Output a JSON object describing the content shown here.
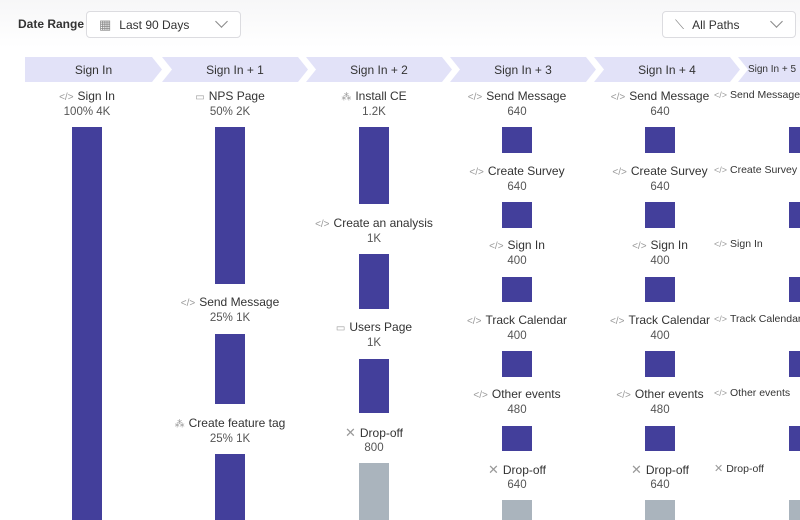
{
  "filters": {
    "date_range_label": "Date Range",
    "date_range_value": "Last 90 Days",
    "paths_value": "All Paths"
  },
  "colors": {
    "bar": "#433f9b",
    "dropoff": "#aab4bd",
    "step_header": "#e2e2f8"
  },
  "steps": [
    "Sign In",
    "Sign In + 1",
    "Sign In + 2",
    "Sign In + 3",
    "Sign In + 4",
    "Sign In + 5"
  ],
  "columns": [
    [
      {
        "icon": "code-icon",
        "label": "Sign In",
        "value": "100% 4K"
      }
    ],
    [
      {
        "icon": "page-icon",
        "label": "NPS Page",
        "value": "50% 2K"
      },
      {
        "icon": "code-icon",
        "label": "Send Message",
        "value": "25% 1K"
      },
      {
        "icon": "feature-tag-icon",
        "label": "Create feature tag",
        "value": "25% 1K"
      }
    ],
    [
      {
        "icon": "feature-tag-icon",
        "label": "Install CE",
        "value": "1.2K"
      },
      {
        "icon": "code-icon",
        "label": "Create an analysis",
        "value": "1K"
      },
      {
        "icon": "page-icon",
        "label": "Users Page",
        "value": "1K"
      },
      {
        "icon": "close-icon",
        "label": "Drop-off",
        "value": "800",
        "dropoff": true
      }
    ],
    [
      {
        "icon": "code-icon",
        "label": "Send Message",
        "value": "640"
      },
      {
        "icon": "code-icon",
        "label": "Create Survey",
        "value": "640"
      },
      {
        "icon": "code-icon",
        "label": "Sign In",
        "value": "400"
      },
      {
        "icon": "code-icon",
        "label": "Track Calendar",
        "value": "400"
      },
      {
        "icon": "code-icon",
        "label": "Other events",
        "value": "480"
      },
      {
        "icon": "close-icon",
        "label": "Drop-off",
        "value": "640",
        "dropoff": true
      }
    ],
    [
      {
        "icon": "code-icon",
        "label": "Send Message",
        "value": "640"
      },
      {
        "icon": "code-icon",
        "label": "Create Survey",
        "value": "640"
      },
      {
        "icon": "code-icon",
        "label": "Sign In",
        "value": "400"
      },
      {
        "icon": "code-icon",
        "label": "Track Calendar",
        "value": "400"
      },
      {
        "icon": "code-icon",
        "label": "Other events",
        "value": "480"
      },
      {
        "icon": "close-icon",
        "label": "Drop-off",
        "value": "640",
        "dropoff": true
      }
    ],
    [
      {
        "icon": "code-icon",
        "label": "Send Message"
      },
      {
        "icon": "code-icon",
        "label": "Create Survey"
      },
      {
        "icon": "code-icon",
        "label": "Sign In"
      },
      {
        "icon": "code-icon",
        "label": "Track Calendar"
      },
      {
        "icon": "code-icon",
        "label": "Other events"
      },
      {
        "icon": "close-icon",
        "label": "Drop-off",
        "dropoff": true
      }
    ]
  ]
}
